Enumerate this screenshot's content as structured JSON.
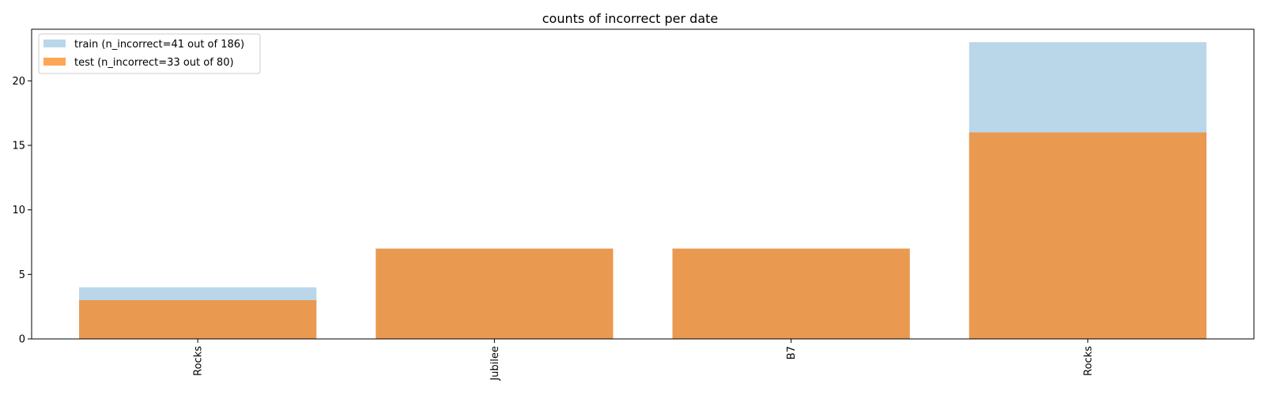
{
  "chart_data": {
    "type": "bar",
    "title": "counts of incorrect per date",
    "xlabel": "",
    "ylabel": "",
    "categories": [
      "Rocks",
      "Jubilee",
      "B7",
      "Rocks"
    ],
    "ylim": [
      0,
      24
    ],
    "y_ticks": [
      0,
      5,
      10,
      15,
      20
    ],
    "grid": false,
    "legend_position": "top-left",
    "series": [
      {
        "name": "train (n_incorrect=41 out of 186)",
        "values": [
          4,
          7,
          7,
          23
        ],
        "color": "#a9cce3",
        "opacity": 0.8
      },
      {
        "name": "test (n_incorrect=33 out of 80)",
        "values": [
          3,
          7,
          7,
          16
        ],
        "color": "#ff7f0e",
        "opacity": 0.7
      }
    ]
  }
}
